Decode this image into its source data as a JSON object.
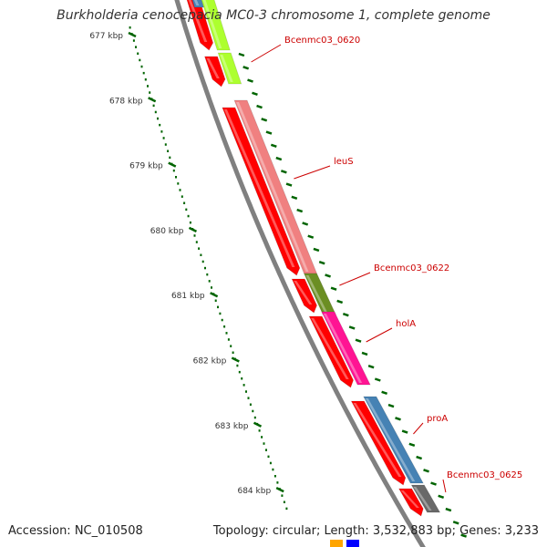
{
  "title": "Burkholderia cenocepacia MC0-3 chromosome 1, complete genome",
  "footer": {
    "accession": "Accession: NC_010508",
    "summary": "Topology: circular; Length: 3,532,883 bp; Genes: 3,233"
  },
  "axis_ticks": [
    "677 kbp",
    "678 kbp",
    "679 kbp",
    "680 kbp",
    "681 kbp",
    "682 kbp",
    "683 kbp",
    "684 kbp"
  ],
  "genes": [
    {
      "label": "Bcenmc03_0620",
      "color": "#adff2f"
    },
    {
      "label": "leuS",
      "color": "#f08080"
    },
    {
      "label": "Bcenmc03_0622",
      "color": "#6b8e23"
    },
    {
      "label": "holA",
      "color": "#ff1493"
    },
    {
      "label": "proA",
      "color": "#4682b4"
    },
    {
      "label": "Bcenmc03_0625",
      "color": "#696969"
    }
  ],
  "colors": {
    "backbone": "#808080",
    "cds": "#ff0000",
    "tick": "#006400",
    "label_line": "#cc0000"
  }
}
